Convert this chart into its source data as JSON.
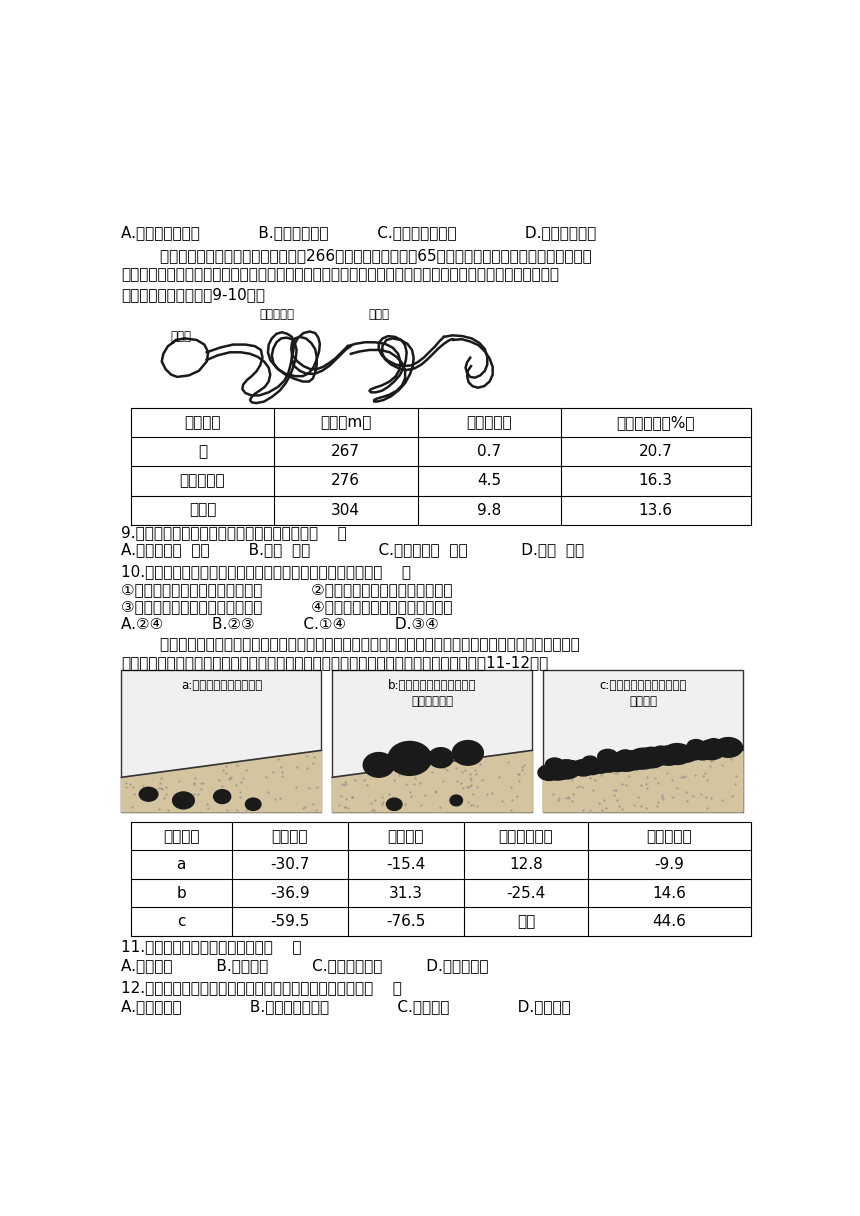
{
  "bg_color": "#ffffff",
  "line1": "A.防治土壤盐碱化            B.加快水流速度          C.防治土地荒漠化              D.减少水土流失",
  "para1": "        吉林省吉林市的松花湖湖面平均海拔266米，丰满水电站下游65千米江段冬季景观奇特，除赏雾凇外，",
  "para2": "江滩上还聚集着来自西伯利亚的野生赤麻鸭，它们的越冬地原是鄱阳湖地区。表为松花湖湖岸到矮山的三类植",
  "para3": "被分布资料。据此完成9-10题。",
  "table1_headers": [
    "植被类型",
    "海拔（m）",
    "坡度（度）",
    "土壤含水率（%）"
  ],
  "table1_rows": [
    [
      "甲",
      "267",
      "0.7",
      "20.7"
    ],
    [
      "落叶阔叶林",
      "276",
      "4.5",
      "16.3"
    ],
    [
      "针叶林",
      "304",
      "9.8",
      "13.6"
    ]
  ],
  "q9": "9.推测甲植被的类型及形成的主要影响因素为（    ）",
  "q9_opts": "A.针阔混交林  气温        B.草甸  土壤              C.常绿阔叶林  降水           D.荒漠  海拔",
  "q10": "10.赤麻鸭能够在丰满水电站下游的江滩上越冬的主要原因是（    ）",
  "q10_opt1": "①水电站下游气候温暖，利于越冬          ②当地人们保护野生物的意识增强",
  "q10_opt2": "③水电站下游含沙量少，水质良好          ④江水不冻，江滩宽阔，食物丰富",
  "q10_ans": "A.②④          B.②③          C.①④          D.③④",
  "para4_1": "        砾石分布在土壤内部和表面，影响土壤水文过程和水土保持等生态服务功能。下图示意三种砾石在土壤中",
  "para4_2": "的位置。下表为与无砾石的裸土相比，三种砾石位置对土壤水文过程产生的影响。据此完成11-12题。",
  "img_label_a": "a:砾石完全处于土壤内部",
  "img_label_b": "b:砾石位于土壤表层并覆盖\n部分土壤表面",
  "img_label_c": "c:砾石以不同厚度完全覆盖\n土壤表面",
  "table2_headers": [
    "砾石位置",
    "蒸发速率",
    "下渗速率",
    "地表径流速率",
    "土壤含水量"
  ],
  "table2_rows": [
    [
      "a",
      "-30.7",
      "-15.4",
      "12.8",
      "-9.9"
    ],
    [
      "b",
      "-36.9",
      "31.3",
      "-25.4",
      "14.6"
    ],
    [
      "c",
      "-59.5",
      "-76.5",
      "无值",
      "44.6"
    ]
  ],
  "q11": "11.随着砾石覆盖度增加，会提高（    ）",
  "q11_opts": "A.蒸发速率         B.下渗速率         C.地表径流速率         D.土壤含水量",
  "q12": "12.通过增加砾石覆盖度，对农业增产效果最明显的地区是（    ）",
  "q12_opts": "A.珠江三角洲              B.雅鲁藏布江河谷              C.河西走廊              D.三江平原",
  "map_label_lake": "松花湖",
  "map_label_dam": "丰满水电站",
  "map_label_city": "吉林市"
}
